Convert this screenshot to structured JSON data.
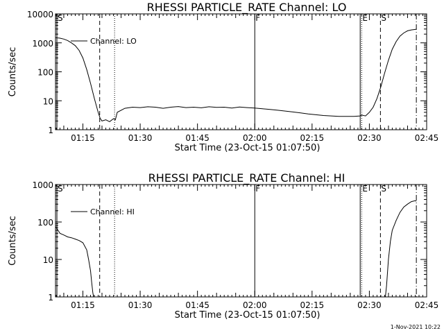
{
  "footer": {
    "timestamp": "1-Nov-2021 10:22"
  },
  "chart_data": [
    {
      "type": "line",
      "title": "RHESSI PARTICLE_RATE Channel: LO",
      "xlabel": "Start Time (23-Oct-15 01:07:50)",
      "ylabel": "Counts/sec",
      "xlim_minutes": [
        7.83,
        105.0
      ],
      "ylim": [
        1,
        10000
      ],
      "yscale": "log",
      "x_ticks": [
        {
          "label": "01:15",
          "minute": 15
        },
        {
          "label": "01:30",
          "minute": 30
        },
        {
          "label": "01:45",
          "minute": 45
        },
        {
          "label": "02:00",
          "minute": 60
        },
        {
          "label": "02:15",
          "minute": 75
        },
        {
          "label": "02:30",
          "minute": 90
        },
        {
          "label": "02:45",
          "minute": 105
        }
      ],
      "y_ticks": [
        {
          "label": "1",
          "value": 1
        },
        {
          "label": "10",
          "value": 10
        },
        {
          "label": "100",
          "value": 100
        },
        {
          "label": "1000",
          "value": 1000
        },
        {
          "label": "10000",
          "value": 10000
        }
      ],
      "legend": "Channel: LO",
      "legend_position": "upper-left",
      "markers": [
        {
          "label": "S",
          "minute": 8.2,
          "style": "solid"
        },
        {
          "label": "",
          "minute": 19.4,
          "style": "dashed"
        },
        {
          "label": "",
          "minute": 23.3,
          "style": "dotted"
        },
        {
          "label": "F",
          "minute": 60.0,
          "style": "solid"
        },
        {
          "label": "",
          "minute": 87.6,
          "style": "solid"
        },
        {
          "label": "E",
          "minute": 88.0,
          "style": "dotted"
        },
        {
          "label": "S",
          "minute": 92.9,
          "style": "dashed"
        },
        {
          "label": "",
          "minute": 102.3,
          "style": "dashdot"
        }
      ],
      "series": [
        {
          "x": [
            7.83,
            9,
            10,
            11,
            12,
            13,
            14,
            15,
            16,
            17,
            18,
            19,
            19.5,
            20,
            21,
            22,
            23,
            23.5,
            24,
            26,
            28,
            30,
            32,
            34,
            36,
            38,
            40,
            42,
            44,
            46,
            48,
            50,
            52,
            54,
            56,
            58,
            60,
            62,
            64,
            66,
            68,
            70,
            72,
            74,
            76,
            78,
            80,
            82,
            84,
            86,
            87.6,
            88,
            89,
            90,
            91,
            92,
            93,
            94,
            95,
            96,
            97,
            98,
            99,
            100,
            101,
            102,
            102.3
          ],
          "y": [
            1500,
            1450,
            1350,
            1200,
            1000,
            800,
            550,
            300,
            120,
            40,
            12,
            4,
            2.5,
            2,
            2.2,
            1.9,
            2.4,
            2.2,
            4,
            5.5,
            6,
            5.8,
            6.2,
            6,
            5.5,
            6,
            6.3,
            5.8,
            6,
            5.7,
            6.2,
            5.9,
            6,
            5.6,
            6.1,
            5.8,
            5.6,
            5.3,
            5,
            4.7,
            4.4,
            4.1,
            3.8,
            3.5,
            3.3,
            3.1,
            3,
            2.9,
            2.9,
            2.9,
            3,
            3.2,
            3,
            4,
            6,
            12,
            30,
            90,
            250,
            600,
            1100,
            1700,
            2200,
            2600,
            2800,
            2900,
            2950
          ]
        }
      ]
    },
    {
      "type": "line",
      "title": "RHESSI PARTICLE_RATE Channel: HI",
      "xlabel": "Start Time (23-Oct-15 01:07:50)",
      "ylabel": "Counts/sec",
      "xlim_minutes": [
        7.83,
        105.0
      ],
      "ylim": [
        1,
        1000
      ],
      "yscale": "log",
      "x_ticks": [
        {
          "label": "01:15",
          "minute": 15
        },
        {
          "label": "01:30",
          "minute": 30
        },
        {
          "label": "01:45",
          "minute": 45
        },
        {
          "label": "02:00",
          "minute": 60
        },
        {
          "label": "02:15",
          "minute": 75
        },
        {
          "label": "02:30",
          "minute": 90
        },
        {
          "label": "02:45",
          "minute": 105
        }
      ],
      "y_ticks": [
        {
          "label": "1",
          "value": 1
        },
        {
          "label": "10",
          "value": 10
        },
        {
          "label": "100",
          "value": 100
        },
        {
          "label": "1000",
          "value": 1000
        }
      ],
      "legend": "Channel: HI",
      "legend_position": "upper-left",
      "markers": [
        {
          "label": "S",
          "minute": 8.2,
          "style": "solid"
        },
        {
          "label": "",
          "minute": 19.4,
          "style": "dashed"
        },
        {
          "label": "",
          "minute": 23.3,
          "style": "dotted"
        },
        {
          "label": "F",
          "minute": 60.0,
          "style": "solid"
        },
        {
          "label": "",
          "minute": 87.6,
          "style": "solid"
        },
        {
          "label": "E",
          "minute": 88.0,
          "style": "dotted"
        },
        {
          "label": "S",
          "minute": 92.9,
          "style": "dashed"
        },
        {
          "label": "",
          "minute": 102.3,
          "style": "dashdot"
        }
      ],
      "series": [
        {
          "x": [
            7.83,
            8.5,
            9,
            10,
            11,
            12,
            13,
            14,
            15,
            16,
            16.5,
            17,
            17.3,
            17.6,
            17.8
          ],
          "y": [
            75,
            60,
            50,
            45,
            40,
            38,
            35,
            32,
            28,
            18,
            10,
            5,
            2.5,
            1.3,
            1
          ]
        },
        {
          "x": [
            94.2,
            94.5,
            95,
            95.5,
            96,
            97,
            98,
            99,
            100,
            101,
            102,
            102.3
          ],
          "y": [
            1,
            2,
            10,
            30,
            60,
            110,
            180,
            250,
            300,
            350,
            370,
            360
          ]
        }
      ]
    }
  ]
}
